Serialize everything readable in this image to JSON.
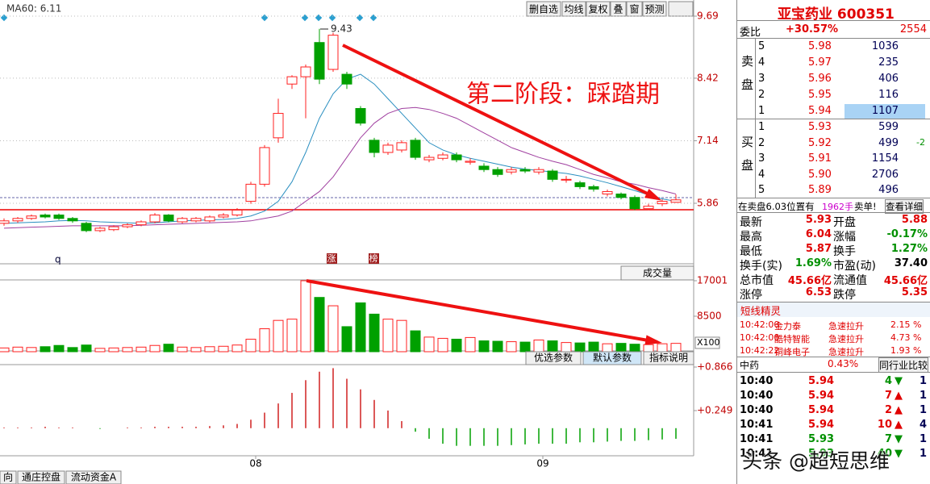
{
  "toolbar": {
    "ma_label": "MA60: 6.11",
    "buttons": [
      "删自选",
      "均线",
      "复权",
      "叠",
      "窗",
      "预测"
    ]
  },
  "price_chart": {
    "yticks": [
      9.69,
      8.42,
      7.14,
      5.86
    ],
    "high_label": "9.43",
    "annotation": "第二阶段：踩踏期",
    "markers": [
      "q",
      "涨",
      "榜"
    ],
    "up_color": "#ff2020",
    "down_color": "#00a000",
    "candles": {
      "open": [
        5.45,
        5.5,
        5.55,
        5.62,
        5.62,
        5.55,
        5.45,
        5.3,
        5.32,
        5.38,
        5.42,
        5.48,
        5.62,
        5.48,
        5.5,
        5.5,
        5.58,
        5.62,
        5.9,
        6.25,
        7.2,
        8.3,
        8.45,
        9.15,
        8.6,
        8.5,
        7.8,
        7.15,
        6.9,
        6.95,
        7.15,
        6.75,
        6.78,
        6.85,
        6.7,
        6.62,
        6.55,
        6.5,
        6.55,
        6.5,
        6.52,
        6.35,
        6.28,
        6.2,
        6.05,
        6.05,
        5.98,
        5.75,
        5.85,
        5.88
      ],
      "close": [
        5.5,
        5.55,
        5.6,
        5.58,
        5.55,
        5.5,
        5.3,
        5.35,
        5.38,
        5.42,
        5.48,
        5.62,
        5.5,
        5.55,
        5.55,
        5.58,
        5.62,
        5.72,
        6.25,
        7.0,
        7.7,
        8.45,
        8.65,
        8.4,
        9.3,
        8.3,
        7.5,
        6.9,
        7.05,
        7.1,
        6.8,
        6.8,
        6.85,
        6.75,
        6.72,
        6.55,
        6.45,
        6.55,
        6.52,
        6.55,
        6.35,
        6.35,
        6.2,
        6.15,
        6.1,
        5.98,
        5.75,
        5.8,
        5.9,
        5.93
      ],
      "high": [
        5.55,
        5.58,
        5.63,
        5.65,
        5.65,
        5.58,
        5.48,
        5.38,
        5.41,
        5.45,
        5.51,
        5.66,
        5.64,
        5.58,
        5.58,
        5.61,
        5.66,
        5.76,
        6.3,
        7.05,
        8.0,
        8.48,
        8.7,
        9.43,
        9.35,
        8.55,
        7.85,
        7.2,
        7.1,
        7.15,
        7.2,
        6.85,
        6.9,
        6.9,
        6.78,
        6.68,
        6.6,
        6.6,
        6.6,
        6.6,
        6.56,
        6.42,
        6.32,
        6.24,
        6.14,
        6.08,
        6.02,
        5.85,
        5.94,
        6.04
      ],
      "low": [
        5.4,
        5.46,
        5.52,
        5.55,
        5.52,
        5.46,
        5.27,
        5.27,
        5.29,
        5.35,
        5.39,
        5.45,
        5.47,
        5.45,
        5.47,
        5.47,
        5.55,
        5.59,
        5.85,
        6.2,
        7.1,
        8.2,
        7.6,
        8.3,
        8.55,
        8.2,
        7.45,
        6.8,
        6.85,
        6.9,
        6.75,
        6.7,
        6.74,
        6.7,
        6.65,
        6.5,
        6.4,
        6.45,
        6.48,
        6.45,
        6.3,
        6.28,
        6.15,
        6.1,
        6.0,
        5.94,
        5.72,
        5.72,
        5.8,
        5.87
      ]
    },
    "ma_lines": [
      {
        "color": "#2a8fc0",
        "values": [
          5.45,
          5.46,
          5.47,
          5.48,
          5.5,
          5.51,
          5.5,
          5.48,
          5.47,
          5.46,
          5.45,
          5.46,
          5.48,
          5.5,
          5.51,
          5.52,
          5.53,
          5.55,
          5.6,
          5.7,
          5.9,
          6.3,
          6.9,
          7.6,
          8.1,
          8.4,
          8.5,
          8.3,
          8.0,
          7.7,
          7.4,
          7.1,
          6.95,
          6.85,
          6.78,
          6.72,
          6.66,
          6.6,
          6.56,
          6.53,
          6.5,
          6.47,
          6.42,
          6.35,
          6.28,
          6.2,
          6.12,
          6.03,
          5.95,
          5.9
        ]
      },
      {
        "color": "#a040a0",
        "values": [
          5.35,
          5.36,
          5.37,
          5.38,
          5.39,
          5.4,
          5.4,
          5.4,
          5.4,
          5.4,
          5.41,
          5.42,
          5.43,
          5.44,
          5.45,
          5.46,
          5.47,
          5.48,
          5.5,
          5.55,
          5.6,
          5.7,
          5.9,
          6.1,
          6.4,
          6.8,
          7.2,
          7.5,
          7.7,
          7.8,
          7.82,
          7.78,
          7.7,
          7.6,
          7.45,
          7.3,
          7.15,
          7.0,
          6.9,
          6.8,
          6.72,
          6.65,
          6.55,
          6.45,
          6.38,
          6.3,
          6.25,
          6.18,
          6.12,
          6.05
        ]
      }
    ]
  },
  "volume_chart": {
    "label": "成交量",
    "unit": "X100",
    "yticks": [
      17001,
      8500
    ],
    "values": [
      900,
      1100,
      1000,
      1200,
      1500,
      1000,
      1600,
      800,
      900,
      1000,
      1100,
      1500,
      1800,
      1100,
      1000,
      1200,
      1300,
      1600,
      3000,
      5500,
      7500,
      7800,
      17001,
      13000,
      11000,
      6000,
      11700,
      9000,
      7800,
      7500,
      5000,
      3500,
      3200,
      3000,
      3400,
      2600,
      2500,
      2400,
      2300,
      2800,
      2600,
      2200,
      2100,
      2300,
      1900,
      2000,
      1800,
      1700,
      1900,
      2000
    ]
  },
  "indicator_buttons": [
    "优选参数",
    "默认参数",
    "指标说明"
  ],
  "macd_chart": {
    "yticks": [
      {
        "value": 0.866,
        "label": "+0.866"
      },
      {
        "value": 0.249,
        "label": "+0.249"
      }
    ],
    "values": [
      0.01,
      0.01,
      0.01,
      0.02,
      0.01,
      0.01,
      0,
      -0.01,
      0,
      0.01,
      0.01,
      0.02,
      0.02,
      0.02,
      0.02,
      0.03,
      0.04,
      0.06,
      0.12,
      0.22,
      0.35,
      0.5,
      0.68,
      0.8,
      0.85,
      0.7,
      0.55,
      0.4,
      0.25,
      0.1,
      -0.05,
      -0.15,
      -0.22,
      -0.25,
      -0.25,
      -0.25,
      -0.25,
      -0.24,
      -0.23,
      -0.22,
      -0.22,
      -0.22,
      -0.2,
      -0.2,
      -0.19,
      -0.18,
      -0.18,
      -0.17,
      -0.16,
      -0.15
    ]
  },
  "x_labels": [
    "08",
    "09"
  ],
  "tabs": [
    "向",
    "通庄控盘",
    "流动资金A"
  ],
  "quote": {
    "title": "亚宝药业 600351",
    "weibi_label": "委比",
    "weibi": "+30.57%",
    "weibi_diff": "2554",
    "sell_side": "卖盘",
    "buy_side": "买盘",
    "sell": [
      [
        "5",
        "5.98",
        "1036"
      ],
      [
        "4",
        "5.97",
        "235"
      ],
      [
        "3",
        "5.96",
        "406"
      ],
      [
        "2",
        "5.95",
        "116"
      ],
      [
        "1",
        "5.94",
        "1107"
      ]
    ],
    "buy": [
      [
        "1",
        "5.93",
        "599"
      ],
      [
        "2",
        "5.92",
        "499",
        "-2"
      ],
      [
        "3",
        "5.91",
        "1154"
      ],
      [
        "4",
        "5.90",
        "2706"
      ],
      [
        "5",
        "5.89",
        "496"
      ]
    ],
    "notice": {
      "text": "在卖盘6.03位置有",
      "qty": "1962手",
      "tag": "卖单!",
      "link": "查看详细"
    },
    "stats": [
      [
        "最新",
        "5.93",
        "开盘",
        "5.88"
      ],
      [
        "最高",
        "6.04",
        "涨幅",
        "-0.17%"
      ],
      [
        "最低",
        "5.87",
        "换手",
        "1.27%"
      ],
      [
        "换手(实)",
        "1.69%",
        "市盈(动)",
        "37.40"
      ],
      [
        "总市值",
        "45.66亿",
        "流通值",
        "45.66亿"
      ],
      [
        "涨停",
        "6.53",
        "跌停",
        "5.35"
      ]
    ],
    "sprite": {
      "title": "短线精灵",
      "rows": [
        [
          "10:42:00",
          "金力泰",
          "急速拉升",
          "2.15 %"
        ],
        [
          "10:42:00",
          "酷特智能",
          "急速拉升",
          "4.73 %"
        ],
        [
          "10:42:22",
          "铜峰电子",
          "急速拉升",
          "1.93 %"
        ]
      ]
    },
    "sector": {
      "name": "中药",
      "change": "0.43%",
      "link": "同行业比较"
    },
    "trades": [
      [
        "10:40",
        "5.94",
        "4",
        "down",
        "1"
      ],
      [
        "10:40",
        "5.94",
        "7",
        "up",
        "1"
      ],
      [
        "10:40",
        "5.94",
        "2",
        "up",
        "1"
      ],
      [
        "10:41",
        "5.94",
        "10",
        "up",
        "4"
      ],
      [
        "10:41",
        "5.93",
        "7",
        "down",
        "1"
      ],
      [
        "10:41",
        "5.93",
        "40",
        "down",
        "1"
      ]
    ]
  },
  "watermark": "头条 @超短思维"
}
